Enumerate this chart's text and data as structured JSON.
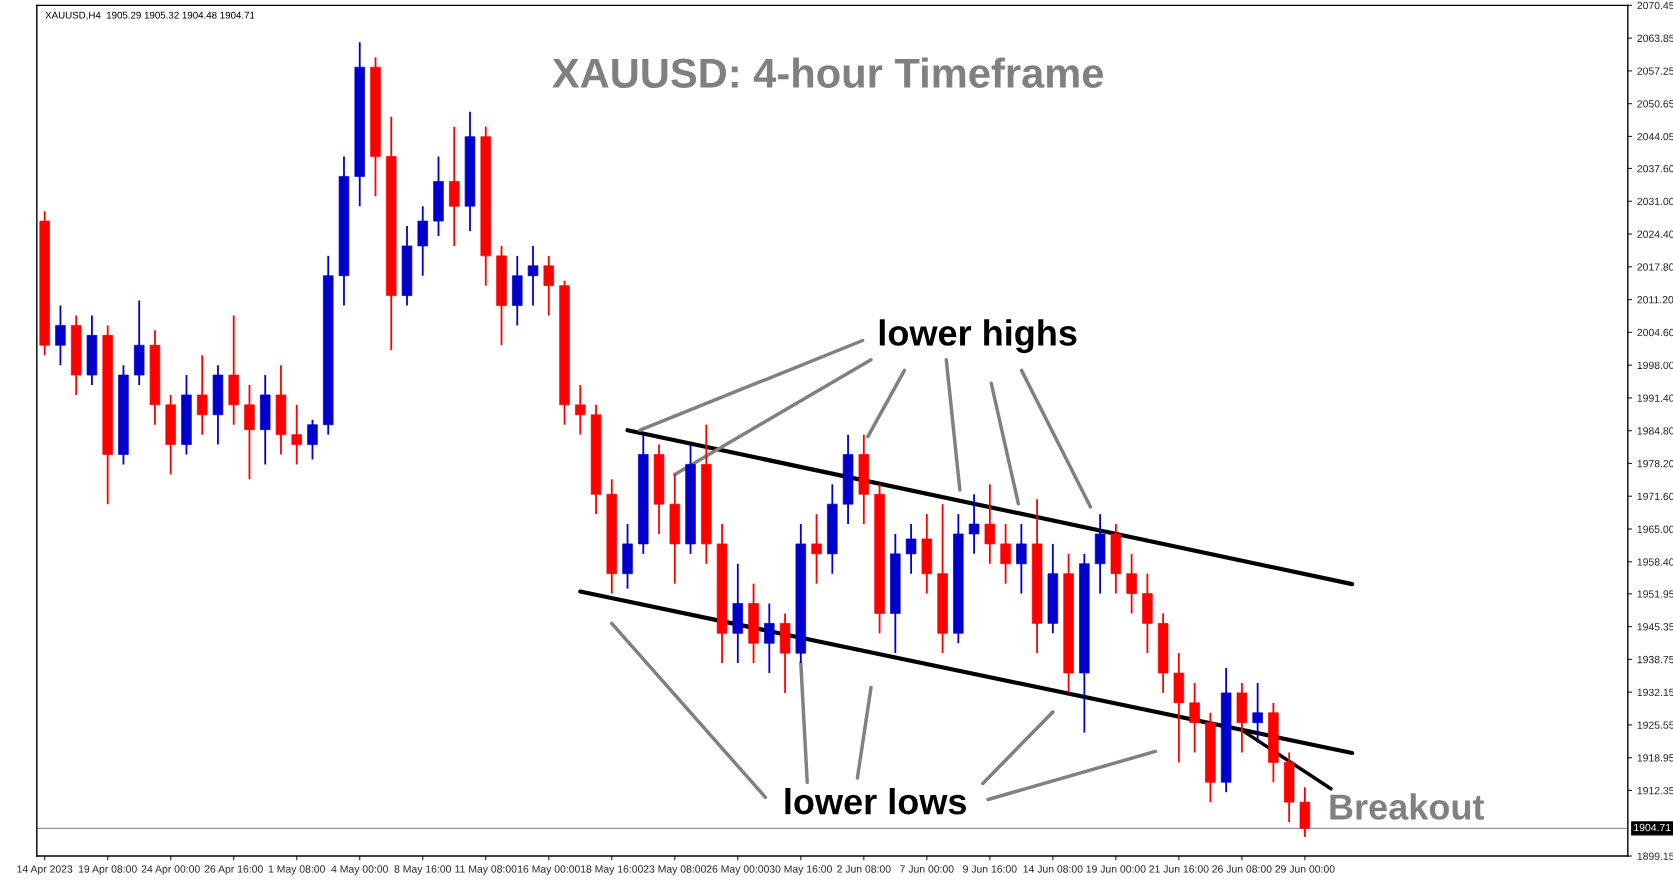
{
  "chart_data": {
    "type": "candlestick",
    "title": "XAUUSD: 4-hour Timeframe",
    "annotations": [
      "XAUUSD,H4  1905.29 1905.32 1904.48 1904.71",
      {
        "text": "lower highs",
        "x": "23 May 08:00",
        "y": 1976
      },
      {
        "text": "lower lows",
        "x": "30 May 16:00",
        "y": 1938
      },
      {
        "text": "Breakout",
        "x": "26 Jun 08:00",
        "y": 1924.5
      }
    ],
    "colors": [
      "#ff0000",
      "#0000cc",
      "#ff0000",
      "#0000cc",
      "#ff0000",
      "#0000cc",
      "#0000cc",
      "#ff0000",
      "#ff0000",
      "#0000cc",
      "#ff0000",
      "#0000cc",
      "#ff0000",
      "#ff0000",
      "#0000cc",
      "#ff0000",
      "#ff0000",
      "#0000cc",
      "#0000cc",
      "#0000cc",
      "#0000cc",
      "#ff0000",
      "#ff0000",
      "#0000cc",
      "#0000cc",
      "#0000cc",
      "#ff0000",
      "#0000cc",
      "#ff0000",
      "#ff0000",
      "#0000cc",
      "#0000cc",
      "#ff0000",
      "#ff0000",
      "#ff0000",
      "#ff0000",
      "#ff0000",
      "#0000cc",
      "#0000cc",
      "#ff0000",
      "#ff0000",
      "#0000cc",
      "#ff0000",
      "#ff0000",
      "#0000cc",
      "#ff0000",
      "#0000cc",
      "#ff0000",
      "#0000cc",
      "#ff0000",
      "#0000cc",
      "#0000cc",
      "#ff0000",
      "#ff0000",
      "#0000cc",
      "#0000cc",
      "#ff0000",
      "#ff0000",
      "#0000cc",
      "#0000cc",
      "#ff0000",
      "#ff0000",
      "#0000cc",
      "#ff0000",
      "#0000cc",
      "#ff0000",
      "#0000cc",
      "#0000cc",
      "#ff0000",
      "#ff0000",
      "#ff0000",
      "#ff0000",
      "#ff0000",
      "#ff0000",
      "#ff0000",
      "#0000cc",
      "#ff0000",
      "#0000cc",
      "#ff0000",
      "#ff0000",
      "#ff0000",
      null,
      null,
      null,
      null,
      null,
      null,
      null,
      null,
      null,
      null,
      null,
      null,
      null,
      null,
      null,
      null,
      null,
      null,
      null,
      null
    ],
    "categories": [
      "14 Apr 2023",
      null,
      null,
      null,
      "19 Apr 08:00",
      null,
      null,
      null,
      "24 Apr 00:00",
      null,
      null,
      null,
      "26 Apr 16:00",
      null,
      null,
      null,
      "1 May 08:00",
      null,
      null,
      null,
      "4 May 00:00",
      null,
      null,
      null,
      "8 May 16:00",
      null,
      null,
      null,
      "11 May 08:00",
      null,
      null,
      null,
      "16 May 00:00",
      null,
      null,
      null,
      "18 May 16:00",
      null,
      null,
      null,
      "23 May 08:00",
      null,
      null,
      null,
      "26 May 00:00",
      null,
      null,
      null,
      "30 May 16:00",
      null,
      null,
      null,
      "2 Jun 08:00",
      null,
      null,
      null,
      "7 Jun 00:00",
      null,
      null,
      null,
      "9 Jun 16:00",
      null,
      null,
      null,
      "14 Jun 08:00",
      null,
      null,
      null,
      "19 Jun 00:00",
      null,
      null,
      null,
      "21 Jun 16:00",
      null,
      null,
      null,
      "26 Jun 08:00",
      null,
      null,
      null,
      "29 Jun 00:00",
      null,
      null,
      null,
      null,
      null,
      null,
      null,
      null,
      null,
      null,
      null,
      null,
      null,
      null,
      null,
      null,
      null,
      null,
      null,
      null
    ],
    "ohlc": [
      [
        2027,
        2029,
        2000,
        2002
      ],
      [
        2002,
        2010,
        1998,
        2006
      ],
      [
        2006,
        2008,
        1992,
        1996
      ],
      [
        1996,
        2008,
        1994,
        2004
      ],
      [
        2004,
        2006,
        1970,
        1980
      ],
      [
        1980,
        1998,
        1978,
        1996
      ],
      [
        1996,
        2011,
        1994,
        2002
      ],
      [
        2002,
        2005,
        1986,
        1990
      ],
      [
        1990,
        1992,
        1976,
        1982
      ],
      [
        1982,
        1996,
        1980,
        1992
      ],
      [
        1992,
        2000,
        1984,
        1988
      ],
      [
        1988,
        1998,
        1982,
        1996
      ],
      [
        1996,
        2008,
        1986,
        1990
      ],
      [
        1990,
        1994,
        1975,
        1985
      ],
      [
        1985,
        1996,
        1978,
        1992
      ],
      [
        1992,
        1998,
        1980,
        1984
      ],
      [
        1984,
        1990,
        1978,
        1982
      ],
      [
        1982,
        1987,
        1979,
        1986
      ],
      [
        1986,
        2020,
        1984,
        2016
      ],
      [
        2016,
        2040,
        2010,
        2036
      ],
      [
        2036,
        2063,
        2030,
        2058
      ],
      [
        2058,
        2060,
        2032,
        2040
      ],
      [
        2040,
        2048,
        2001,
        2012
      ],
      [
        2012,
        2026,
        2010,
        2022
      ],
      [
        2022,
        2030,
        2016,
        2027
      ],
      [
        2027,
        2040,
        2024,
        2035
      ],
      [
        2035,
        2046,
        2022,
        2030
      ],
      [
        2030,
        2049,
        2025,
        2044
      ],
      [
        2044,
        2046,
        2014,
        2020
      ],
      [
        2020,
        2022,
        2002,
        2010
      ],
      [
        2010,
        2020,
        2006,
        2016
      ],
      [
        2016,
        2022,
        2010,
        2018
      ],
      [
        2018,
        2020,
        2008,
        2014
      ],
      [
        2014,
        2015,
        1986,
        1990
      ],
      [
        1990,
        1994,
        1984,
        1988
      ],
      [
        1988,
        1990,
        1968,
        1972
      ],
      [
        1972,
        1975,
        1952,
        1956
      ],
      [
        1956,
        1966,
        1953,
        1962
      ],
      [
        1962,
        1984,
        1960,
        1980
      ],
      [
        1980,
        1982,
        1964,
        1970
      ],
      [
        1970,
        1976,
        1954,
        1962
      ],
      [
        1962,
        1982,
        1960,
        1978
      ],
      [
        1978,
        1986,
        1958,
        1962
      ],
      [
        1962,
        1966,
        1938,
        1944
      ],
      [
        1944,
        1958,
        1938,
        1950
      ],
      [
        1950,
        1954,
        1938,
        1942
      ],
      [
        1942,
        1950,
        1936,
        1946
      ],
      [
        1946,
        1948,
        1932,
        1940
      ],
      [
        1940,
        1966,
        1938,
        1962
      ],
      [
        1962,
        1968,
        1954,
        1960
      ],
      [
        1960,
        1974,
        1956,
        1970
      ],
      [
        1970,
        1984,
        1966,
        1980
      ],
      [
        1980,
        1984,
        1966,
        1972
      ],
      [
        1972,
        1974,
        1944,
        1948
      ],
      [
        1948,
        1964,
        1940,
        1960
      ],
      [
        1960,
        1966,
        1956,
        1963
      ],
      [
        1963,
        1968,
        1952,
        1956
      ],
      [
        1956,
        1970,
        1940,
        1944
      ],
      [
        1944,
        1968,
        1942,
        1964
      ],
      [
        1964,
        1972,
        1960,
        1966
      ],
      [
        1966,
        1974,
        1958,
        1962
      ],
      [
        1962,
        1966,
        1954,
        1958
      ],
      [
        1958,
        1966,
        1952,
        1962
      ],
      [
        1962,
        1971,
        1940,
        1946
      ],
      [
        1946,
        1962,
        1944,
        1956
      ],
      [
        1956,
        1960,
        1932,
        1936
      ],
      [
        1936,
        1960,
        1924,
        1958
      ],
      [
        1958,
        1968,
        1952,
        1964
      ],
      [
        1964,
        1966,
        1952,
        1956
      ],
      [
        1956,
        1960,
        1948,
        1952
      ],
      [
        1952,
        1956,
        1940,
        1946
      ],
      [
        1946,
        1948,
        1932,
        1936
      ],
      [
        1936,
        1940,
        1918,
        1930
      ],
      [
        1930,
        1934,
        1920,
        1926
      ],
      [
        1926,
        1928,
        1910,
        1914
      ],
      [
        1914,
        1937,
        1912,
        1932
      ],
      [
        1932,
        1934,
        1920,
        1926
      ],
      [
        1926,
        1934,
        1922,
        1928
      ],
      [
        1928,
        1930,
        1914,
        1918
      ],
      [
        1918,
        1920,
        1906,
        1910
      ],
      [
        1910,
        1913,
        1903,
        1904.71
      ],
      null,
      null,
      null,
      null,
      null,
      null,
      null,
      null,
      null,
      null,
      null,
      null,
      null,
      null,
      null,
      null,
      null,
      null,
      null,
      null
    ],
    "series": [
      {
        "type": "line",
        "color": "#000000",
        "values": [
          null,
          null,
          null,
          null,
          null,
          null,
          null,
          null,
          null,
          null,
          null,
          null,
          null,
          null,
          null,
          null,
          null,
          null,
          null,
          null,
          null,
          null,
          null,
          null,
          null,
          null,
          null,
          null,
          null,
          null,
          null,
          null,
          null,
          null,
          null,
          null,
          null,
          1984.9,
          null,
          null,
          null,
          null,
          null,
          null,
          null,
          null,
          null,
          null,
          null,
          null,
          null,
          null,
          null,
          null,
          null,
          null,
          null,
          null,
          null,
          null,
          null,
          null,
          null,
          null,
          null,
          null,
          null,
          null,
          null,
          null,
          null,
          null,
          null,
          null,
          null,
          null,
          null,
          null,
          null,
          null,
          null,
          null,
          null,
          1953.9,
          null,
          null,
          null,
          null,
          null,
          null,
          null,
          null,
          null,
          null,
          null,
          null,
          null,
          null,
          null,
          null,
          null
        ]
      },
      {
        "type": "line",
        "color": "#000000",
        "values": [
          null,
          null,
          null,
          null,
          null,
          null,
          null,
          null,
          null,
          null,
          null,
          null,
          null,
          null,
          null,
          null,
          null,
          null,
          null,
          null,
          null,
          null,
          null,
          null,
          null,
          null,
          null,
          null,
          null,
          null,
          null,
          null,
          null,
          null,
          1952.4,
          null,
          null,
          null,
          null,
          null,
          null,
          null,
          null,
          null,
          null,
          null,
          null,
          null,
          null,
          null,
          null,
          null,
          null,
          null,
          null,
          null,
          null,
          null,
          null,
          null,
          null,
          null,
          null,
          null,
          null,
          null,
          null,
          null,
          null,
          null,
          null,
          null,
          null,
          null,
          null,
          null,
          null,
          null,
          null,
          null,
          null,
          null,
          null,
          1919.9,
          null,
          null,
          null,
          null,
          null,
          null,
          null,
          null,
          null,
          null,
          null,
          null,
          null,
          null,
          null,
          null,
          null
        ]
      }
    ],
    "ref_lines": [
      {
        "axis": "y",
        "value": 1904.71,
        "label": "1904.71",
        "color": "#8899aa"
      }
    ],
    "ylim": [
      1899.15,
      2070.45
    ],
    "yticks": [
      2070.45,
      2063.85,
      2057.25,
      2050.65,
      2044.05,
      {
        "value": 2037.6,
        "label": "2037.60"
      },
      {
        "value": 2031.0,
        "label": "2031.00"
      },
      {
        "value": 2024.4,
        "label": "2024.40"
      },
      {
        "value": 2017.8,
        "label": "2017.80"
      },
      {
        "value": 2011.2,
        "label": "2011.20"
      },
      {
        "value": 2004.6,
        "label": "2004.60"
      },
      {
        "value": 1998.0,
        "label": "1998.00"
      },
      {
        "value": 1991.4,
        "label": "1991.40"
      },
      {
        "value": 1984.8,
        "label": "1984.80"
      },
      {
        "value": 1978.2,
        "label": "1978.20"
      },
      {
        "value": 1971.6,
        "label": "1971.60"
      },
      {
        "value": 1965.0,
        "label": "1965.00"
      },
      {
        "value": 1958.4,
        "label": "1958.40"
      },
      1951.95,
      1945.35,
      1938.75,
      1932.15,
      1925.55,
      1918.95,
      1912.35,
      1899.15
    ],
    "grid": false,
    "legend": false
  }
}
